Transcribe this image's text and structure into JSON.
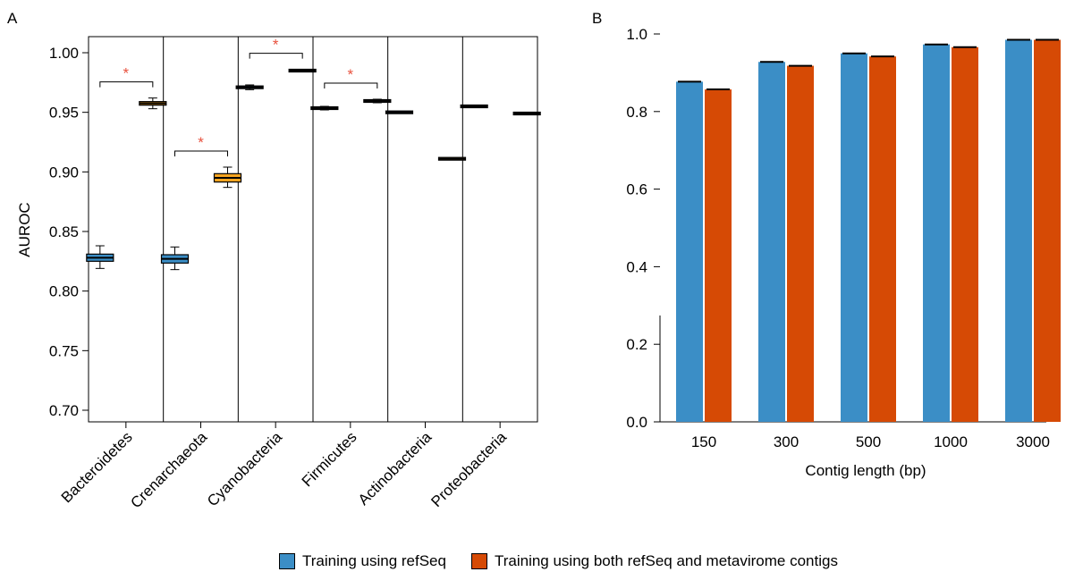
{
  "colors": {
    "refseq": "#3b8ec6",
    "both": "#d64a05",
    "orange_box": "#f5a420",
    "star": "#e8523f",
    "axis": "#000000"
  },
  "legend": {
    "items": [
      {
        "label": "Training using refSeq",
        "color": "#3b8ec6"
      },
      {
        "label": "Training using both refSeq and metavirome contigs",
        "color": "#d64a05"
      }
    ]
  },
  "chart_data": [
    {
      "panel_label": "A",
      "type": "box",
      "ylabel": "AUROC",
      "ylim": [
        0.69,
        1.005
      ],
      "yticks": [
        0.7,
        0.75,
        0.8,
        0.85,
        0.9,
        0.95,
        1.0
      ],
      "ytick_labels": [
        "0.70",
        "0.75",
        "0.80",
        "0.85",
        "0.90",
        "0.95",
        "1.00"
      ],
      "categories": [
        "Bacteroidetes",
        "Crenarchaeota",
        "Cyanobacteria",
        "Firmicutes",
        "Actinobacteria",
        "Proteobacteria"
      ],
      "significance_marker": "*",
      "groups": [
        {
          "category": "Bacteroidetes",
          "significant": true,
          "refseq": {
            "min": 0.819,
            "q1": 0.825,
            "median": 0.828,
            "q3": 0.831,
            "max": 0.838,
            "fill": "#3b8ec6"
          },
          "both": {
            "min": 0.953,
            "q1": 0.956,
            "median": 0.9575,
            "q3": 0.959,
            "max": 0.962,
            "fill": "#f5a420"
          }
        },
        {
          "category": "Crenarchaeota",
          "significant": true,
          "refseq": {
            "min": 0.818,
            "q1": 0.824,
            "median": 0.827,
            "q3": 0.831,
            "max": 0.837,
            "fill": "#3b8ec6"
          },
          "both": {
            "min": 0.887,
            "q1": 0.892,
            "median": 0.895,
            "q3": 0.899,
            "max": 0.904,
            "fill": "#f5a420"
          }
        },
        {
          "category": "Cyanobacteria",
          "significant": true,
          "refseq": {
            "min": 0.969,
            "q1": 0.97,
            "median": 0.971,
            "q3": 0.972,
            "max": 0.973,
            "fill": "#3b8ec6"
          },
          "both": {
            "min": 0.984,
            "q1": 0.9845,
            "median": 0.985,
            "q3": 0.9855,
            "max": 0.986,
            "fill": "#f5a420"
          }
        },
        {
          "category": "Firmicutes",
          "significant": true,
          "refseq": {
            "min": 0.952,
            "q1": 0.953,
            "median": 0.9535,
            "q3": 0.954,
            "max": 0.955,
            "fill": "#3b8ec6"
          },
          "both": {
            "min": 0.958,
            "q1": 0.959,
            "median": 0.9595,
            "q3": 0.96,
            "max": 0.961,
            "fill": "#f5a420"
          }
        },
        {
          "category": "Actinobacteria",
          "significant": false,
          "refseq": {
            "min": 0.949,
            "q1": 0.9495,
            "median": 0.95,
            "q3": 0.9505,
            "max": 0.951,
            "fill": "#3b8ec6"
          },
          "both": {
            "min": 0.91,
            "q1": 0.9105,
            "median": 0.911,
            "q3": 0.9115,
            "max": 0.912,
            "fill": "#f5a420"
          }
        },
        {
          "category": "Proteobacteria",
          "significant": false,
          "refseq": {
            "min": 0.955,
            "q1": 0.955,
            "median": 0.955,
            "q3": 0.955,
            "max": 0.955,
            "fill": "#3b8ec6"
          },
          "both": {
            "min": 0.949,
            "q1": 0.949,
            "median": 0.949,
            "q3": 0.949,
            "max": 0.949,
            "fill": "#f5a420"
          }
        }
      ]
    },
    {
      "panel_label": "B",
      "type": "bar",
      "xlabel": "Contig length (bp)",
      "ylim": [
        0,
        1.0
      ],
      "yticks": [
        0.0,
        0.2,
        0.4,
        0.6,
        0.8,
        1.0
      ],
      "ytick_labels": [
        "0.0",
        "0.2",
        "0.4",
        "0.6",
        "0.8",
        "1.0"
      ],
      "categories": [
        "150",
        "300",
        "500",
        "1000",
        "3000"
      ],
      "series": [
        {
          "name": "Training using refSeq",
          "color": "#3b8ec6",
          "values": [
            0.877,
            0.928,
            0.95,
            0.973,
            0.985
          ]
        },
        {
          "name": "Training using both refSeq and metavirome contigs",
          "color": "#d64a05",
          "values": [
            0.857,
            0.918,
            0.942,
            0.966,
            0.985
          ]
        }
      ]
    }
  ]
}
